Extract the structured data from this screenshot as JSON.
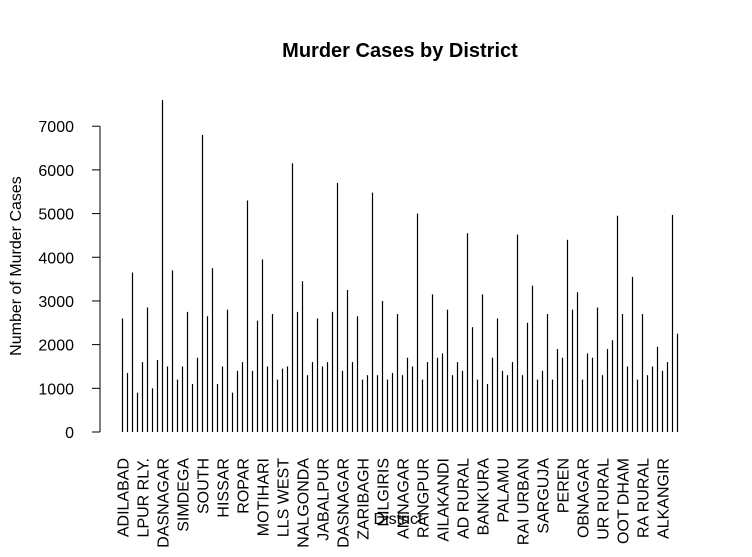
{
  "chart_data": {
    "type": "bar",
    "title": "Murder Cases by District",
    "x_label": "District",
    "y_label": "Number of Murder Cases",
    "categories": [
      "ADILABAD",
      null,
      null,
      null,
      "LPUR RLY.",
      null,
      null,
      null,
      "DASNAGAR",
      null,
      null,
      null,
      "SIMDEGA",
      null,
      null,
      null,
      "SOUTH",
      null,
      null,
      null,
      "HISSAR",
      null,
      null,
      null,
      "ROPAR",
      null,
      null,
      null,
      "MOTIHARI",
      null,
      null,
      null,
      "LLS WEST",
      null,
      null,
      null,
      "NALGONDA",
      null,
      null,
      null,
      "JABALPUR",
      null,
      null,
      null,
      "DASNAGAR",
      null,
      null,
      null,
      "ZARIBAGH",
      null,
      null,
      null,
      "NILGIRIS",
      null,
      null,
      null,
      "AMNAGAR",
      null,
      null,
      null,
      "RANGPUR",
      null,
      null,
      null,
      "AILAKANDI",
      null,
      null,
      null,
      "AD RURAL",
      null,
      null,
      null,
      "BANKURA",
      null,
      null,
      null,
      "PALAMU",
      null,
      null,
      null,
      "RAI URBAN",
      null,
      null,
      null,
      "SARGUJA",
      null,
      null,
      null,
      "PEREN",
      null,
      null,
      null,
      "OBNAGAR",
      null,
      null,
      null,
      "UR RURAL",
      null,
      null,
      null,
      "OOT DHAM",
      null,
      null,
      null,
      "RA RURAL",
      null,
      null,
      null,
      "ALKANGIR",
      null,
      null,
      null
    ],
    "values": [
      2600,
      1350,
      3650,
      900,
      1600,
      2850,
      1000,
      1650,
      7600,
      1500,
      3700,
      1200,
      1500,
      2750,
      1100,
      1700,
      6800,
      2650,
      3750,
      1100,
      1500,
      2800,
      900,
      1400,
      1600,
      5300,
      1400,
      2550,
      3950,
      1500,
      2700,
      1200,
      1450,
      1500,
      6150,
      2750,
      3450,
      1300,
      1600,
      2600,
      1500,
      1600,
      2750,
      5700,
      1400,
      3250,
      1600,
      2650,
      1200,
      1300,
      5480,
      1300,
      3000,
      1200,
      1350,
      2700,
      1300,
      1700,
      1500,
      5000,
      1200,
      1600,
      3150,
      1700,
      1800,
      2800,
      1300,
      1600,
      1400,
      4550,
      2400,
      1200,
      3150,
      1100,
      1700,
      2600,
      1400,
      1300,
      1600,
      4520,
      1300,
      2500,
      3350,
      1200,
      1400,
      2700,
      1200,
      1900,
      1700,
      4400,
      2800,
      3200,
      1200,
      1800,
      1700,
      2850,
      1300,
      1900,
      2100,
      4950,
      2700,
      1500,
      3550,
      1200,
      2700,
      1300,
      1500,
      1950,
      1400,
      1600,
      4970,
      2250
    ],
    "color": "#000000",
    "ylim": [
      0,
      7600
    ],
    "yticks": [
      0,
      1000,
      2000,
      3000,
      4000,
      5000,
      6000,
      7000
    ]
  }
}
